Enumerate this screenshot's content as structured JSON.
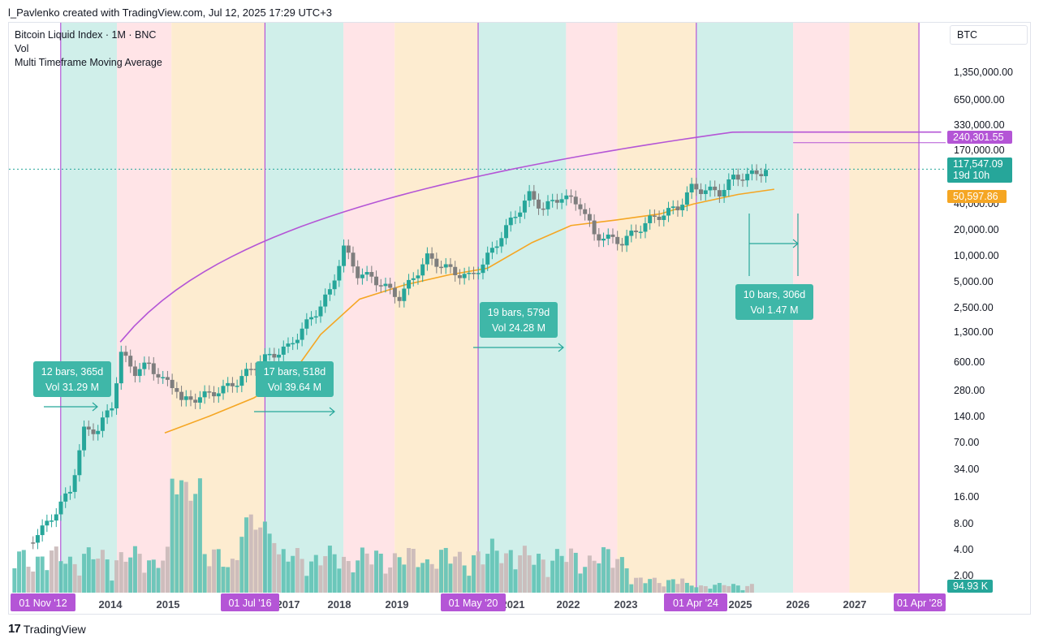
{
  "header": {
    "caption": "l_Pavlenko created with TradingView.com, Jul 12, 2025 17:29 UTC+3"
  },
  "legend": {
    "line1": "Bitcoin Liquid Index · 1M · BNC",
    "line2": "Vol",
    "line3": "Multi Timeframe Moving Average"
  },
  "axis_currency": "BTC",
  "footer": {
    "brand": "TradingView",
    "logo_text": "17"
  },
  "colors": {
    "teal": "#26a69a",
    "red_band": "#ffdfe3",
    "green_band": "#c8ece6",
    "orange_band": "#fde9c8",
    "purple": "#b455d6",
    "orange": "#f5a623",
    "candle_up": "#26a69a",
    "candle_down": "#7e7e7e"
  },
  "chart_data": {
    "type": "candlestick",
    "y_scale": "log",
    "y_ticks": [
      "1,350,000.00",
      "650,000.00",
      "330,000.00",
      "170,000.00",
      "40,000.00",
      "20,000.00",
      "10,000.00",
      "5,000.00",
      "2,500.00",
      "1,300.00",
      "600.00",
      "280.00",
      "140.00",
      "70.00",
      "34.00",
      "16.00",
      "8.00",
      "4.00",
      "2.00"
    ],
    "x_ticks": [
      "2014",
      "2015",
      "2017",
      "2018",
      "2019",
      "2021",
      "2022",
      "2023",
      "2025",
      "2026",
      "2027"
    ],
    "price_labels": [
      {
        "text": "240,301.55",
        "color": "#b455d6"
      },
      {
        "text": "117,547.09",
        "sub": "19d 10h",
        "color": "#26a69a"
      },
      {
        "text": "50,597.86",
        "color": "#f5a623"
      },
      {
        "text": "94.93 K",
        "color": "#26a69a"
      }
    ],
    "date_markers": [
      "01 Nov '12",
      "01 Jul '16",
      "01 May '20",
      "01 Apr '24",
      "01 Apr '28"
    ],
    "measurements": [
      {
        "line1": "12 bars, 365d",
        "line2": "Vol 31.29 M"
      },
      {
        "line1": "17 bars, 518d",
        "line2": "Vol 39.64 M"
      },
      {
        "line1": "19 bars, 579d",
        "line2": "Vol 24.28 M"
      },
      {
        "line1": "10 bars, 306d",
        "line2": "Vol 1.47 M"
      }
    ],
    "cycle_bands": [
      "green",
      "red",
      "orange",
      "green",
      "red",
      "orange",
      "green",
      "red",
      "orange",
      "green",
      "red",
      "orange"
    ],
    "price_series": [
      {
        "d": "2012-04",
        "p": 4.9
      },
      {
        "d": "2012-07",
        "p": 7.0
      },
      {
        "d": "2012-10",
        "p": 11.5
      },
      {
        "d": "2013-01",
        "p": 20
      },
      {
        "d": "2013-04",
        "p": 100
      },
      {
        "d": "2013-07",
        "p": 105
      },
      {
        "d": "2013-10",
        "p": 200
      },
      {
        "d": "2013-12",
        "p": 800
      },
      {
        "d": "2014-03",
        "p": 500
      },
      {
        "d": "2014-06",
        "p": 600
      },
      {
        "d": "2014-09",
        "p": 390
      },
      {
        "d": "2014-12",
        "p": 320
      },
      {
        "d": "2015-01",
        "p": 220
      },
      {
        "d": "2015-06",
        "p": 260
      },
      {
        "d": "2015-10",
        "p": 310
      },
      {
        "d": "2016-01",
        "p": 380
      },
      {
        "d": "2016-06",
        "p": 670
      },
      {
        "d": "2016-12",
        "p": 960
      },
      {
        "d": "2017-06",
        "p": 2500
      },
      {
        "d": "2017-09",
        "p": 4300
      },
      {
        "d": "2017-12",
        "p": 14000
      },
      {
        "d": "2018-03",
        "p": 7000
      },
      {
        "d": "2018-06",
        "p": 6300
      },
      {
        "d": "2018-12",
        "p": 3700
      },
      {
        "d": "2019-06",
        "p": 10800
      },
      {
        "d": "2019-12",
        "p": 7200
      },
      {
        "d": "2020-03",
        "p": 6400
      },
      {
        "d": "2020-06",
        "p": 9100
      },
      {
        "d": "2020-12",
        "p": 29000
      },
      {
        "d": "2021-04",
        "p": 58000
      },
      {
        "d": "2021-07",
        "p": 41000
      },
      {
        "d": "2021-11",
        "p": 57000
      },
      {
        "d": "2022-03",
        "p": 45000
      },
      {
        "d": "2022-06",
        "p": 20000
      },
      {
        "d": "2022-12",
        "p": 16500
      },
      {
        "d": "2023-06",
        "p": 30000
      },
      {
        "d": "2023-12",
        "p": 42000
      },
      {
        "d": "2024-03",
        "p": 71000
      },
      {
        "d": "2024-09",
        "p": 63000
      },
      {
        "d": "2024-12",
        "p": 93000
      },
      {
        "d": "2025-05",
        "p": 104000
      },
      {
        "d": "2025-07",
        "p": 117547
      }
    ]
  }
}
